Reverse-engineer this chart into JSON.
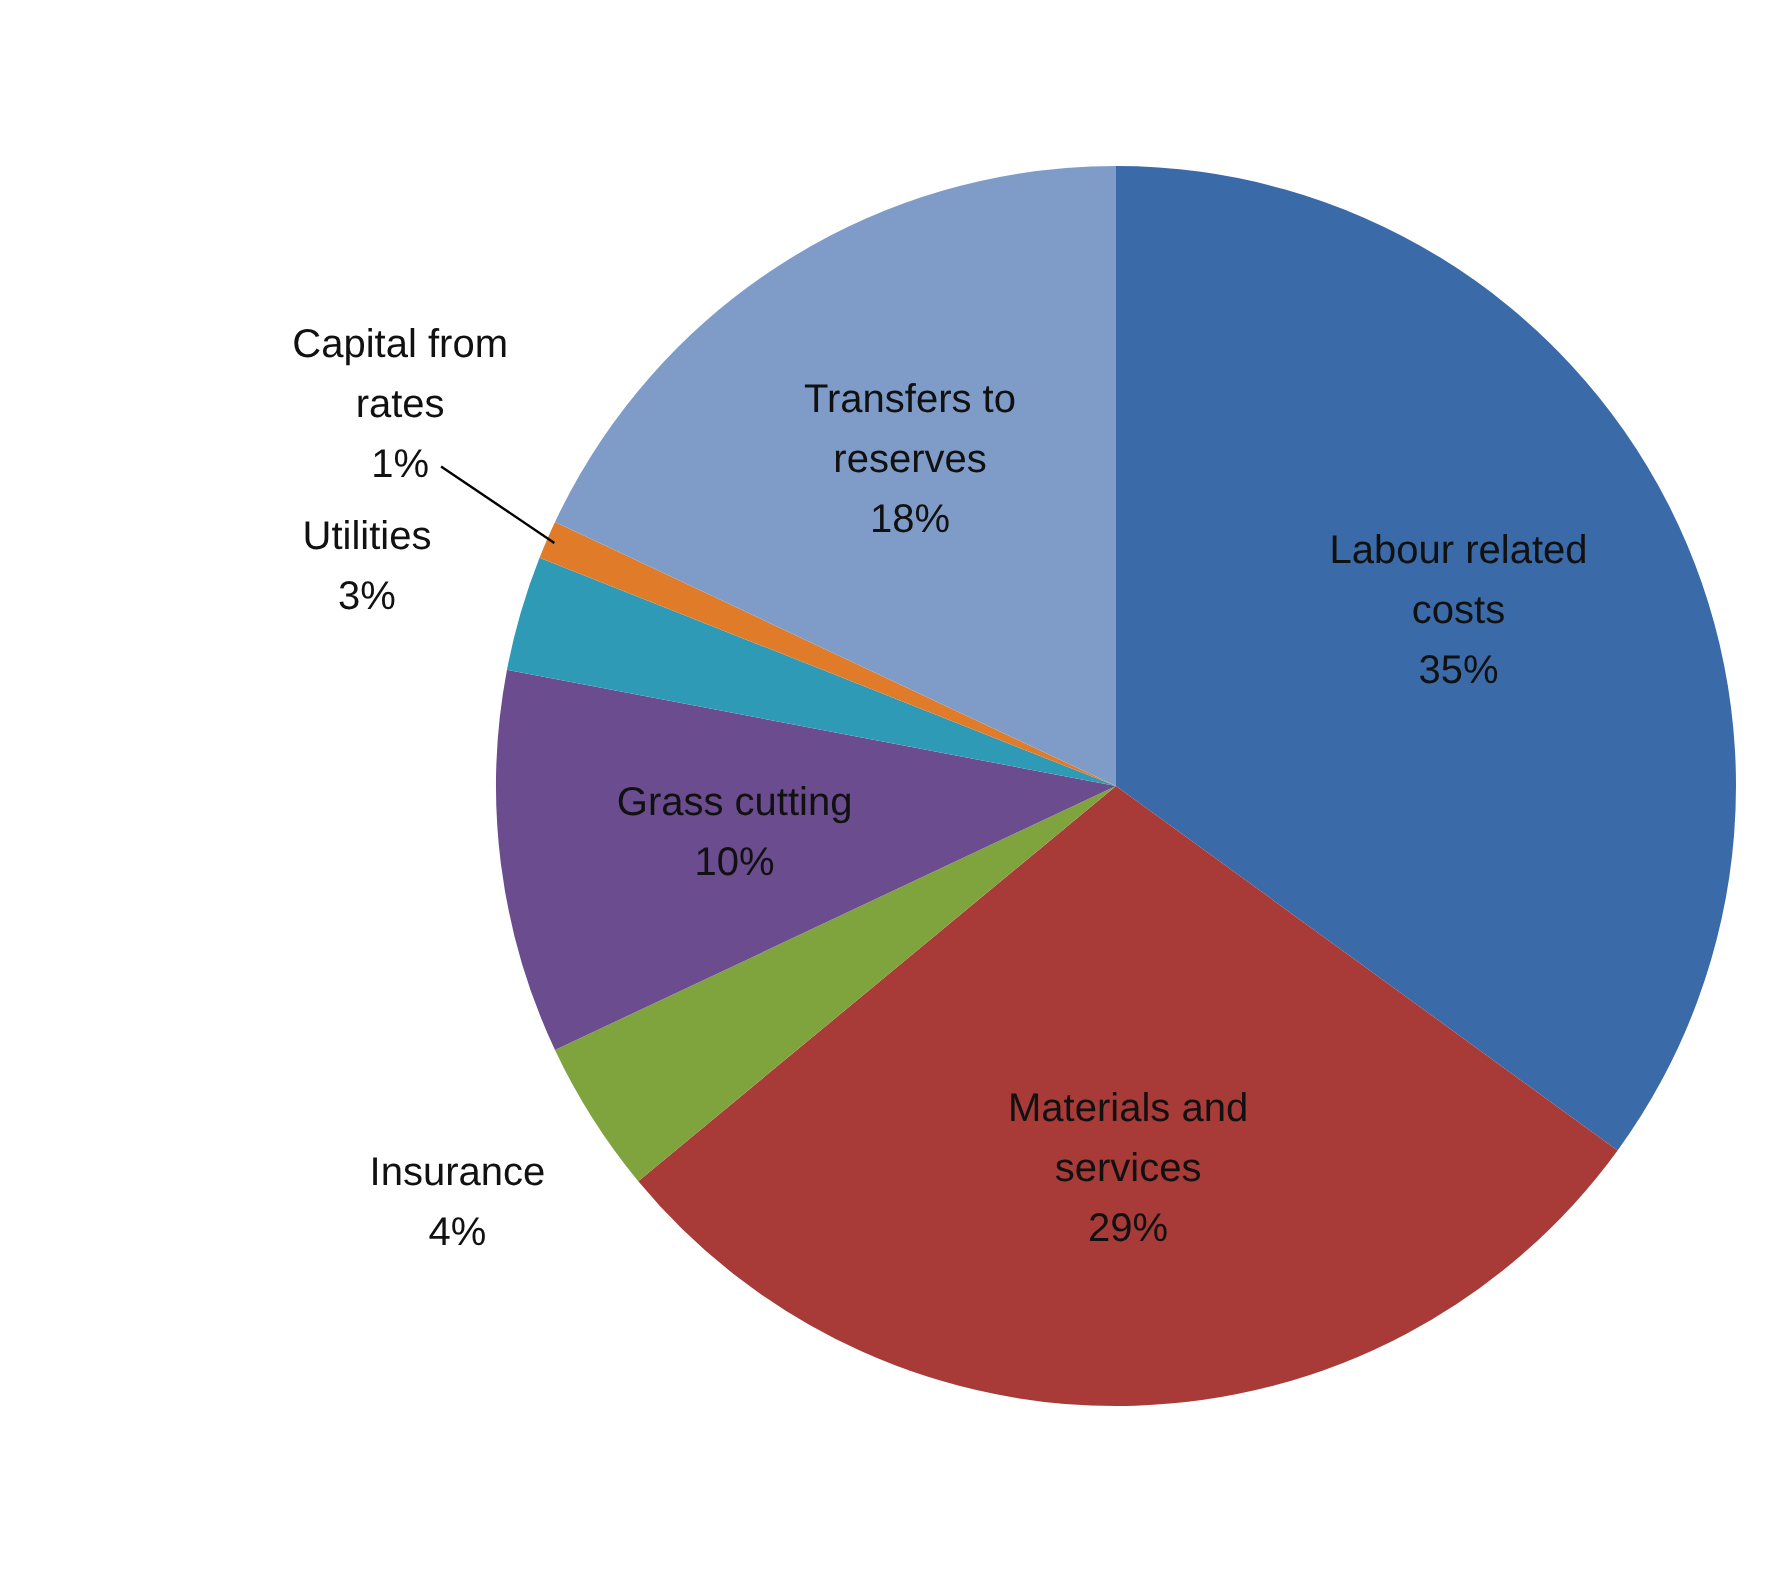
{
  "chart_data": {
    "type": "pie",
    "categories": [
      "Labour related costs",
      "Materials and services",
      "Insurance",
      "Grass cutting",
      "Utilities",
      "Capital from rates",
      "Transfers to reserves"
    ],
    "values": [
      35,
      29,
      4,
      10,
      3,
      1,
      18
    ],
    "colors": [
      "#3b6aa8",
      "#a83a38",
      "#7fa33d",
      "#6b4c8f",
      "#2f9ab5",
      "#e07b2a",
      "#7f9cc8"
    ],
    "value_labels": [
      "35%",
      "29%",
      "4%",
      "10%",
      "3%",
      "1%",
      "18%"
    ],
    "legend": false
  }
}
